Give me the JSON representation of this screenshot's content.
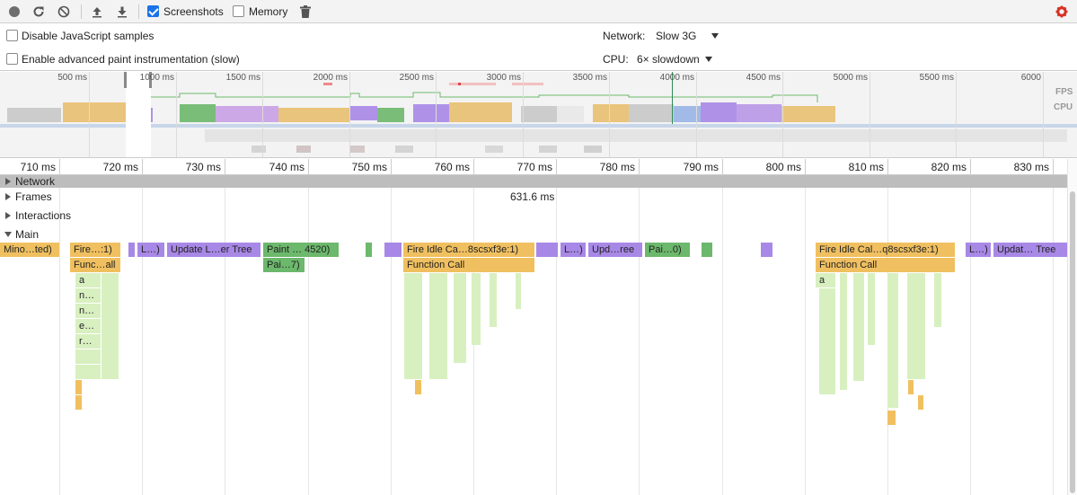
{
  "toolbar": {
    "record_icon": "record-icon",
    "reload_icon": "reload-icon",
    "clear_icon": "clear-icon",
    "upload_icon": "upload-icon",
    "download_icon": "download-icon",
    "screenshots_label": "Screenshots",
    "screenshots_checked": true,
    "memory_label": "Memory",
    "memory_checked": false,
    "gc_icon": "trash-icon",
    "settings_icon": "gear-icon"
  },
  "settings": {
    "disable_js_label": "Disable JavaScript samples",
    "advanced_paint_label": "Enable advanced paint instrumentation (slow)",
    "network_label": "Network:",
    "network_value": "Slow 3G",
    "cpu_label": "CPU:",
    "cpu_value": "6× slowdown"
  },
  "overview": {
    "ticks": [
      "500 ms",
      "1000 ms",
      "1500 ms",
      "2000 ms",
      "2500 ms",
      "3000 ms",
      "3500 ms",
      "4000 ms",
      "4500 ms",
      "5000 ms",
      "5500 ms",
      "6000"
    ],
    "fps_label": "FPS",
    "cpu_label": "CPU"
  },
  "ruler": {
    "ticks": [
      "710 ms",
      "720 ms",
      "730 ms",
      "740 ms",
      "750 ms",
      "760 ms",
      "770 ms",
      "780 ms",
      "790 ms",
      "800 ms",
      "810 ms",
      "820 ms",
      "830 ms"
    ]
  },
  "tracks": {
    "network": "Network",
    "frames": "Frames",
    "frame_duration": "631.6 ms",
    "interactions": "Interactions",
    "main": "Main"
  },
  "main_events": {
    "row1": [
      "Mino…ted)",
      "Fire…:1)",
      "L…)",
      "Update L…er Tree",
      "Paint … 4520)",
      "Fire Idle Ca…8scsxf3e:1)",
      "L…)",
      "Upd…ree",
      "Pai…0)",
      "Fire Idle Cal…q8scsxf3e:1)",
      "L…)",
      "Updat… Tree"
    ],
    "row2": [
      "Func…all",
      "Pai…7)",
      "Function Call",
      "Function Call"
    ],
    "left_stack": [
      "a",
      "n…",
      "n…",
      "e…",
      "r…"
    ],
    "right_stack": [
      "a"
    ]
  },
  "colors": {
    "scripting": "#f0c060",
    "rendering": "#a888e6",
    "painting": "#6cb86c",
    "idle_child": "#d8f0c0",
    "accent": "#1a73e8",
    "settings_gear": "#d93025"
  }
}
